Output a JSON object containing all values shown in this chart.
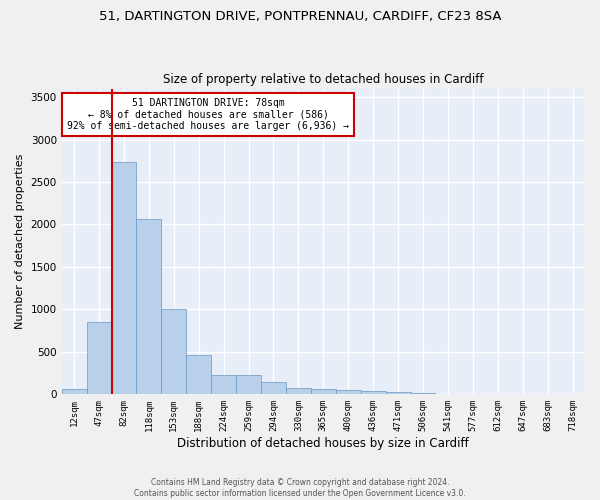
{
  "title_line1": "51, DARTINGTON DRIVE, PONTPRENNAU, CARDIFF, CF23 8SA",
  "title_line2": "Size of property relative to detached houses in Cardiff",
  "xlabel": "Distribution of detached houses by size in Cardiff",
  "ylabel": "Number of detached properties",
  "bar_labels": [
    "12sqm",
    "47sqm",
    "82sqm",
    "118sqm",
    "153sqm",
    "188sqm",
    "224sqm",
    "259sqm",
    "294sqm",
    "330sqm",
    "365sqm",
    "400sqm",
    "436sqm",
    "471sqm",
    "506sqm",
    "541sqm",
    "577sqm",
    "612sqm",
    "647sqm",
    "683sqm",
    "718sqm"
  ],
  "bar_values": [
    60,
    850,
    2730,
    2060,
    1010,
    460,
    230,
    230,
    140,
    75,
    60,
    50,
    35,
    25,
    20,
    0,
    0,
    0,
    0,
    0,
    0
  ],
  "bar_color": "#b8d0ea",
  "bar_edge_color": "#6899c4",
  "property_label": "51 DARTINGTON DRIVE: 78sqm",
  "annotation_line2": "← 8% of detached houses are smaller (586)",
  "annotation_line3": "92% of semi-detached houses are larger (6,936) →",
  "vline_color": "#cc0000",
  "annotation_box_color": "#cc0000",
  "ylim": [
    0,
    3600
  ],
  "yticks": [
    0,
    500,
    1000,
    1500,
    2000,
    2500,
    3000,
    3500
  ],
  "footer_line1": "Contains HM Land Registry data © Crown copyright and database right 2024.",
  "footer_line2": "Contains public sector information licensed under the Open Government Licence v3.0.",
  "bg_color": "#e8eef8",
  "grid_color": "#ffffff",
  "title_fontsize": 9.5,
  "subtitle_fontsize": 8.5,
  "bar_width": 1.0
}
